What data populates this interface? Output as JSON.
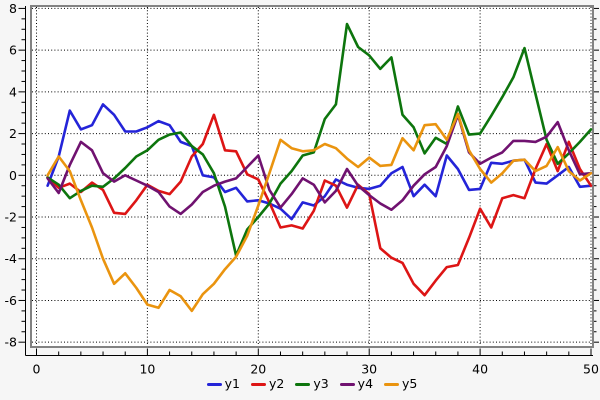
{
  "figure": {
    "background": "#f6f6f6",
    "plot_background": "#ffffff",
    "plot_border_color": "#828282",
    "grid_color": "#000000",
    "axis_color": "#000000",
    "text_color": "#000000"
  },
  "chart_data": {
    "type": "line",
    "title": "",
    "xlabel": "",
    "ylabel": "",
    "xlim": [
      0,
      50
    ],
    "ylim": [
      -8,
      8
    ],
    "x_major_ticks": [
      0,
      10,
      20,
      30,
      40,
      50
    ],
    "x_minor_step": 2,
    "y_major_ticks": [
      8,
      6,
      4,
      2,
      0,
      -2,
      -4,
      -6,
      -8
    ],
    "y_minor_step": 0.5,
    "grid": "dotted black lines at major ticks",
    "legend_position": "bottom-center",
    "x": [
      1,
      2,
      3,
      4,
      5,
      6,
      7,
      8,
      9,
      10,
      11,
      12,
      13,
      14,
      15,
      16,
      17,
      18,
      19,
      20,
      21,
      22,
      23,
      24,
      25,
      26,
      27,
      28,
      29,
      30,
      31,
      32,
      33,
      34,
      35,
      36,
      37,
      38,
      39,
      40,
      41,
      42,
      43,
      44,
      45,
      46,
      47,
      48,
      49,
      50
    ],
    "series": [
      {
        "name": "y1",
        "color": "#2424d8",
        "values": [
          -0.5,
          0.9,
          3.1,
          2.2,
          2.4,
          3.4,
          2.9,
          2.1,
          2.1,
          2.3,
          2.6,
          2.4,
          1.6,
          1.4,
          0.0,
          -0.1,
          -0.8,
          -0.6,
          -1.25,
          -1.2,
          -1.35,
          -1.6,
          -2.1,
          -1.3,
          -1.45,
          -1.0,
          -0.2,
          -0.45,
          -0.6,
          -0.65,
          -0.5,
          0.1,
          0.4,
          -1.0,
          -0.45,
          -1.0,
          0.95,
          0.3,
          -0.7,
          -0.65,
          0.6,
          0.55,
          0.7,
          0.75,
          -0.35,
          -0.4,
          0.0,
          0.4,
          -0.55,
          -0.5
        ]
      },
      {
        "name": "y2",
        "color": "#dd1515",
        "values": [
          -0.1,
          -0.6,
          -0.4,
          -0.8,
          -0.35,
          -0.7,
          -1.8,
          -1.85,
          -1.2,
          -0.45,
          -0.75,
          -0.9,
          -0.3,
          0.9,
          1.5,
          2.9,
          1.2,
          1.15,
          0.05,
          -0.2,
          -1.3,
          -2.5,
          -2.4,
          -2.55,
          -1.7,
          -0.25,
          -0.5,
          -1.55,
          -0.45,
          -0.9,
          -3.5,
          -3.95,
          -4.2,
          -5.2,
          -5.75,
          -5.05,
          -4.4,
          -4.3,
          -3.0,
          -1.6,
          -2.5,
          -1.1,
          -0.95,
          -1.1,
          0.3,
          1.5,
          0.2,
          1.6,
          0.3,
          -0.5
        ]
      },
      {
        "name": "y3",
        "color": "#0d750d",
        "values": [
          -0.1,
          -0.45,
          -1.1,
          -0.75,
          -0.5,
          -0.55,
          -0.15,
          0.35,
          0.9,
          1.2,
          1.7,
          1.95,
          2.05,
          1.4,
          1.0,
          0.1,
          -1.5,
          -3.85,
          -2.6,
          -2.0,
          -1.35,
          -0.4,
          0.2,
          0.95,
          1.1,
          2.7,
          3.4,
          7.25,
          6.15,
          5.75,
          5.1,
          5.65,
          2.9,
          2.3,
          1.05,
          1.8,
          1.5,
          3.3,
          1.95,
          2.0,
          2.85,
          3.75,
          4.7,
          6.1,
          3.9,
          1.7,
          0.55,
          1.05,
          1.6,
          2.2
        ]
      },
      {
        "name": "y4",
        "color": "#701270",
        "values": [
          -0.15,
          -0.85,
          0.5,
          1.6,
          1.2,
          0.1,
          -0.3,
          0.0,
          -0.25,
          -0.5,
          -0.8,
          -1.5,
          -1.85,
          -1.4,
          -0.8,
          -0.5,
          -0.3,
          -0.15,
          0.4,
          0.95,
          -0.7,
          -1.55,
          -0.9,
          -0.15,
          -0.45,
          -1.3,
          -0.75,
          0.3,
          -0.5,
          -0.95,
          -1.35,
          -1.65,
          -1.2,
          -0.5,
          0.05,
          0.4,
          1.4,
          2.9,
          1.1,
          0.55,
          0.85,
          1.1,
          1.65,
          1.65,
          1.6,
          1.85,
          2.55,
          1.2,
          0.05,
          0.1
        ]
      },
      {
        "name": "y5",
        "color": "#ea940f",
        "values": [
          0.0,
          0.9,
          0.2,
          -1.2,
          -2.5,
          -4.0,
          -5.2,
          -4.7,
          -5.4,
          -6.2,
          -6.35,
          -5.5,
          -5.8,
          -6.5,
          -5.7,
          -5.2,
          -4.5,
          -3.9,
          -2.9,
          -1.45,
          0.1,
          1.7,
          1.3,
          1.15,
          1.2,
          1.5,
          1.3,
          0.8,
          0.4,
          0.85,
          0.45,
          0.5,
          1.78,
          1.2,
          2.4,
          2.45,
          1.7,
          2.95,
          1.2,
          0.3,
          -0.35,
          0.1,
          0.7,
          0.75,
          0.2,
          0.45,
          1.35,
          0.2,
          -0.25,
          0.1
        ]
      }
    ]
  },
  "legend": {
    "items": [
      {
        "label": "y1",
        "color": "#2424d8"
      },
      {
        "label": "y2",
        "color": "#dd1515"
      },
      {
        "label": "y3",
        "color": "#0d750d"
      },
      {
        "label": "y4",
        "color": "#701270"
      },
      {
        "label": "y5",
        "color": "#ea940f"
      }
    ]
  }
}
